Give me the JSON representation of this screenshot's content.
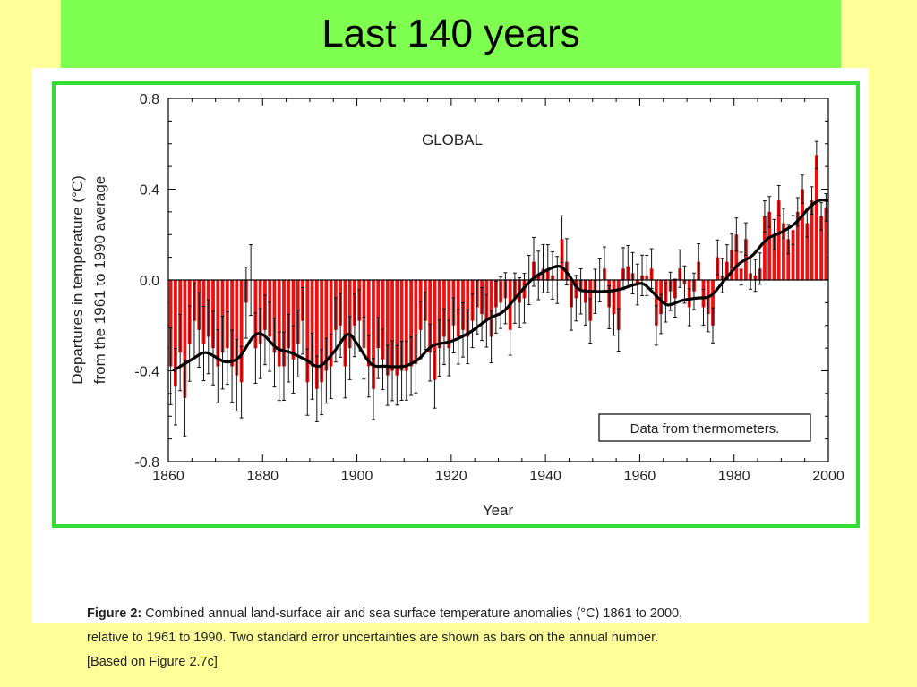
{
  "slide": {
    "title": "Last 140 years",
    "background": "#ffff99",
    "title_bar_color": "#7fff4f"
  },
  "figure": {
    "caption_label": "Figure 2:",
    "caption_line1": " Combined annual land-surface air and sea surface temperature anomalies (°C) 1861 to 2000,",
    "caption_line2": "relative to 1961 to 1990. Two standard error uncertainties are shown as bars on the annual number.",
    "caption_line3": "[Based on Figure 2.7c]",
    "frame_color": "#33dd33"
  },
  "chart_data": {
    "type": "bar",
    "title": "GLOBAL",
    "xlabel": "Year",
    "ylabel": "Departures in temperature (°C)",
    "ylabel2": "from the 1961 to 1990 average",
    "annotation": "Data from thermometers.",
    "xlim": [
      1860,
      2000
    ],
    "ylim": [
      -0.8,
      0.8
    ],
    "xticks": [
      1860,
      1880,
      1900,
      1920,
      1940,
      1960,
      1980,
      2000
    ],
    "yticks": [
      0.8,
      0.4,
      0.0,
      -0.4,
      -0.8
    ],
    "ytick_labels": [
      "0.8",
      "0.4",
      "0.0",
      "-0.4",
      "-0.8"
    ],
    "bar_color": "#ee1111",
    "smooth_color": "#000000",
    "years": [
      1861,
      1862,
      1863,
      1864,
      1865,
      1866,
      1867,
      1868,
      1869,
      1870,
      1871,
      1872,
      1873,
      1874,
      1875,
      1876,
      1877,
      1878,
      1879,
      1880,
      1881,
      1882,
      1883,
      1884,
      1885,
      1886,
      1887,
      1888,
      1889,
      1890,
      1891,
      1892,
      1893,
      1894,
      1895,
      1896,
      1897,
      1898,
      1899,
      1900,
      1901,
      1902,
      1903,
      1904,
      1905,
      1906,
      1907,
      1908,
      1909,
      1910,
      1911,
      1912,
      1913,
      1914,
      1915,
      1916,
      1917,
      1918,
      1919,
      1920,
      1921,
      1922,
      1923,
      1924,
      1925,
      1926,
      1927,
      1928,
      1929,
      1930,
      1931,
      1932,
      1933,
      1934,
      1935,
      1936,
      1937,
      1938,
      1939,
      1940,
      1941,
      1942,
      1943,
      1944,
      1945,
      1946,
      1947,
      1948,
      1949,
      1950,
      1951,
      1952,
      1953,
      1954,
      1955,
      1956,
      1957,
      1958,
      1959,
      1960,
      1961,
      1962,
      1963,
      1964,
      1965,
      1966,
      1967,
      1968,
      1969,
      1970,
      1971,
      1972,
      1973,
      1974,
      1975,
      1976,
      1977,
      1978,
      1979,
      1980,
      1981,
      1982,
      1983,
      1984,
      1985,
      1986,
      1987,
      1988,
      1989,
      1990,
      1991,
      1992,
      1993,
      1994,
      1995,
      1996,
      1997,
      1998,
      1999,
      2000
    ],
    "anomalies": [
      -0.38,
      -0.47,
      -0.32,
      -0.52,
      -0.28,
      -0.18,
      -0.22,
      -0.28,
      -0.25,
      -0.3,
      -0.38,
      -0.32,
      -0.3,
      -0.38,
      -0.42,
      -0.45,
      -0.1,
      0.0,
      -0.3,
      -0.28,
      -0.22,
      -0.25,
      -0.32,
      -0.38,
      -0.38,
      -0.3,
      -0.35,
      -0.28,
      -0.18,
      -0.45,
      -0.38,
      -0.48,
      -0.45,
      -0.4,
      -0.38,
      -0.22,
      -0.2,
      -0.38,
      -0.3,
      -0.2,
      -0.18,
      -0.3,
      -0.38,
      -0.48,
      -0.3,
      -0.35,
      -0.42,
      -0.4,
      -0.42,
      -0.4,
      -0.4,
      -0.38,
      -0.37,
      -0.22,
      -0.18,
      -0.32,
      -0.44,
      -0.3,
      -0.25,
      -0.3,
      -0.2,
      -0.25,
      -0.22,
      -0.25,
      -0.18,
      -0.12,
      -0.15,
      -0.18,
      -0.25,
      -0.12,
      -0.1,
      -0.08,
      -0.22,
      -0.08,
      -0.1,
      -0.08,
      0.0,
      0.08,
      0.02,
      0.05,
      0.05,
      0.02,
      0.0,
      0.18,
      0.08,
      -0.12,
      -0.08,
      -0.05,
      -0.1,
      -0.18,
      -0.05,
      0.0,
      0.05,
      -0.12,
      -0.15,
      -0.22,
      0.05,
      0.06,
      0.03,
      -0.02,
      0.02,
      0.02,
      0.05,
      -0.2,
      -0.15,
      -0.1,
      -0.05,
      -0.08,
      0.05,
      -0.02,
      -0.12,
      -0.05,
      0.08,
      -0.12,
      -0.15,
      -0.2,
      0.1,
      0.02,
      0.08,
      0.13,
      0.2,
      0.05,
      0.18,
      0.03,
      0.02,
      0.05,
      0.28,
      0.3,
      0.2,
      0.35,
      0.25,
      0.18,
      0.22,
      0.3,
      0.4,
      0.25,
      0.35,
      0.55,
      0.28,
      0.32
    ],
    "smoothed": [
      [
        1861,
        -0.4
      ],
      [
        1865,
        -0.35
      ],
      [
        1868,
        -0.32
      ],
      [
        1872,
        -0.36
      ],
      [
        1875,
        -0.34
      ],
      [
        1878,
        -0.25
      ],
      [
        1880,
        -0.24
      ],
      [
        1883,
        -0.3
      ],
      [
        1886,
        -0.32
      ],
      [
        1889,
        -0.35
      ],
      [
        1892,
        -0.38
      ],
      [
        1895,
        -0.32
      ],
      [
        1898,
        -0.24
      ],
      [
        1900,
        -0.28
      ],
      [
        1903,
        -0.37
      ],
      [
        1906,
        -0.38
      ],
      [
        1910,
        -0.38
      ],
      [
        1913,
        -0.35
      ],
      [
        1916,
        -0.29
      ],
      [
        1920,
        -0.27
      ],
      [
        1924,
        -0.23
      ],
      [
        1928,
        -0.17
      ],
      [
        1931,
        -0.14
      ],
      [
        1934,
        -0.07
      ],
      [
        1937,
        0.0
      ],
      [
        1940,
        0.04
      ],
      [
        1943,
        0.06
      ],
      [
        1945,
        0.02
      ],
      [
        1947,
        -0.04
      ],
      [
        1950,
        -0.05
      ],
      [
        1953,
        -0.05
      ],
      [
        1956,
        -0.04
      ],
      [
        1959,
        -0.02
      ],
      [
        1961,
        -0.02
      ],
      [
        1964,
        -0.08
      ],
      [
        1966,
        -0.11
      ],
      [
        1969,
        -0.09
      ],
      [
        1972,
        -0.08
      ],
      [
        1975,
        -0.07
      ],
      [
        1978,
        0.0
      ],
      [
        1981,
        0.07
      ],
      [
        1984,
        0.11
      ],
      [
        1987,
        0.18
      ],
      [
        1990,
        0.21
      ],
      [
        1993,
        0.25
      ],
      [
        1996,
        0.32
      ],
      [
        1998,
        0.35
      ],
      [
        2000,
        0.35
      ]
    ]
  }
}
